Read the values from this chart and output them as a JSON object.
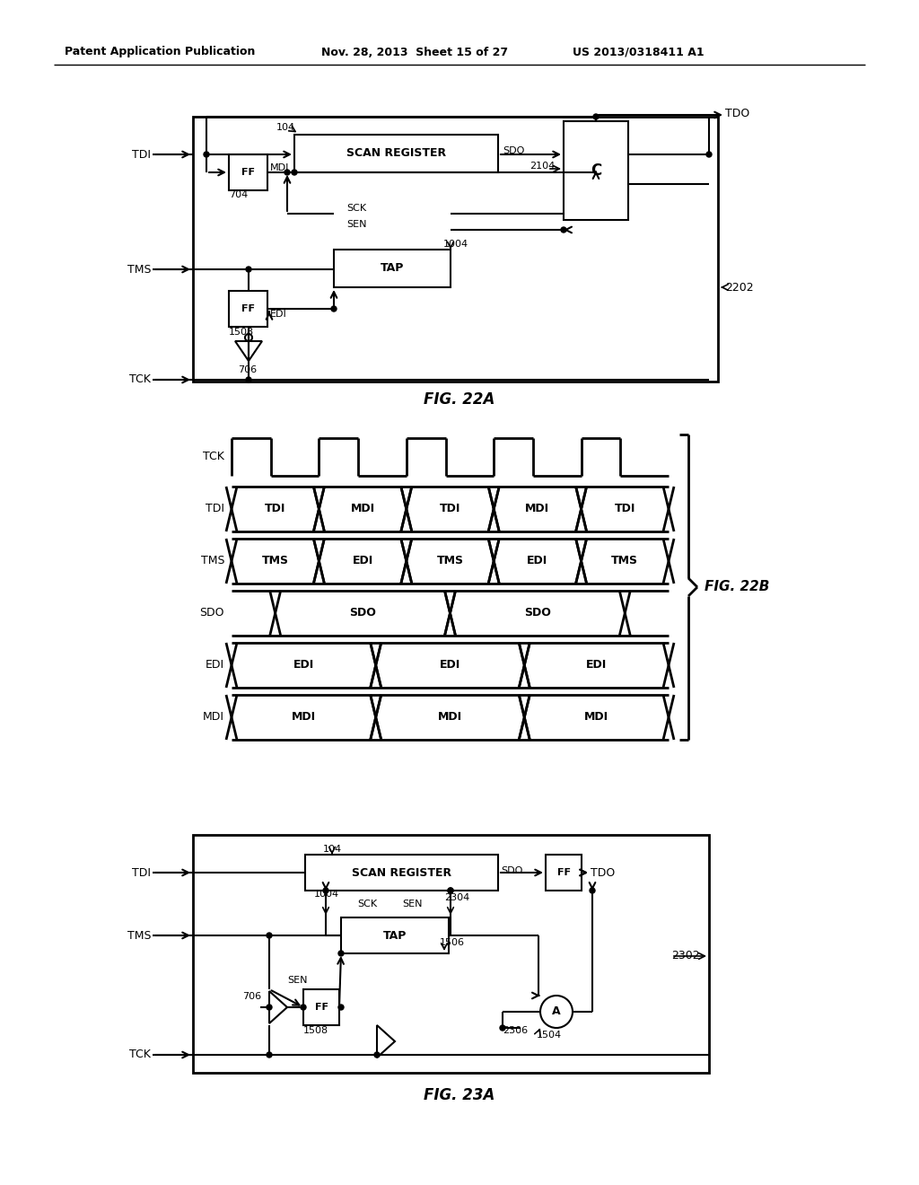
{
  "header_left": "Patent Application Publication",
  "header_mid": "Nov. 28, 2013  Sheet 15 of 27",
  "header_right": "US 2013/0318411 A1",
  "fig22a_label": "FIG. 22A",
  "fig22b_label": "FIG. 22B",
  "fig23a_label": "FIG. 23A",
  "bg_color": "#ffffff",
  "line_color": "#000000"
}
